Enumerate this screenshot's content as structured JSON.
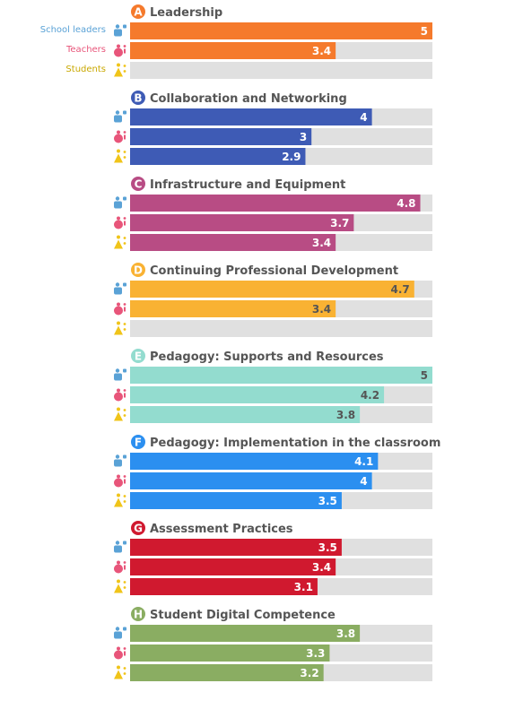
{
  "legend": {
    "school_leaders": "School leaders",
    "teachers": "Teachers",
    "students": "Students"
  },
  "colors": {
    "school_leaders": "#5aa2d6",
    "teachers": "#e8557a",
    "students": "#f0c419",
    "track": "#e0e0e0",
    "title_text": "#555555"
  },
  "chart_data": {
    "type": "bar",
    "orientation": "horizontal",
    "xlim": [
      0,
      5
    ],
    "grid": false,
    "legend_position": "left",
    "series_names": [
      "School leaders",
      "Teachers",
      "Students"
    ],
    "groups": [
      {
        "letter": "A",
        "title": "Leadership",
        "color": "#f57a2c",
        "label_color": "#ffffff",
        "values": [
          5,
          3.4,
          null
        ]
      },
      {
        "letter": "B",
        "title": "Collaboration and Networking",
        "color": "#3e5bb5",
        "label_color": "#ffffff",
        "values": [
          4,
          3,
          2.9
        ]
      },
      {
        "letter": "C",
        "title": "Infrastructure and Equipment",
        "color": "#b84c84",
        "label_color": "#ffffff",
        "values": [
          4.8,
          3.7,
          3.4
        ]
      },
      {
        "letter": "D",
        "title": "Continuing Professional Development",
        "color": "#f9b233",
        "label_color": "#555555",
        "values": [
          4.7,
          3.4,
          null
        ]
      },
      {
        "letter": "E",
        "title": "Pedagogy: Supports and Resources",
        "color": "#93dccf",
        "label_color": "#555555",
        "values": [
          5,
          4.2,
          3.8
        ]
      },
      {
        "letter": "F",
        "title": "Pedagogy: Implementation in the classroom",
        "color": "#2b8ff0",
        "label_color": "#ffffff",
        "values": [
          4.1,
          4,
          3.5
        ]
      },
      {
        "letter": "G",
        "title": "Assessment Practices",
        "color": "#d0192f",
        "label_color": "#ffffff",
        "values": [
          3.5,
          3.4,
          3.1
        ]
      },
      {
        "letter": "H",
        "title": "Student Digital Competence",
        "color": "#8aad62",
        "label_color": "#ffffff",
        "values": [
          3.8,
          3.3,
          3.2
        ]
      }
    ]
  }
}
